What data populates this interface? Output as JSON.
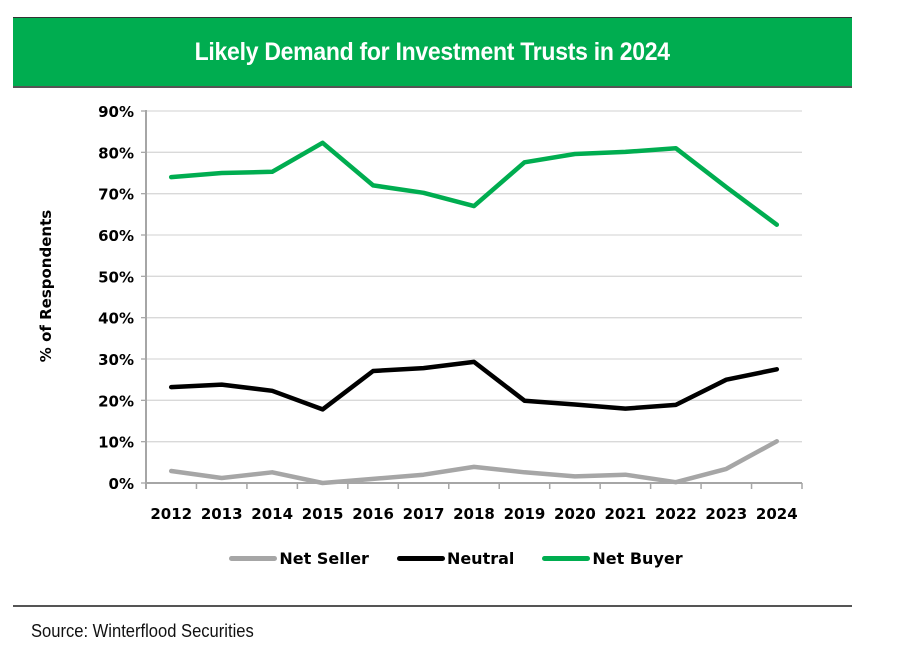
{
  "chart_data": {
    "type": "line",
    "title": "Likely Demand for Investment Trusts in 2024",
    "xlabel": "",
    "ylabel": "% of Respondents",
    "ylim": [
      0,
      90
    ],
    "yticks": [
      0,
      10,
      20,
      30,
      40,
      50,
      60,
      70,
      80,
      90
    ],
    "ytick_labels": [
      "0%",
      "10%",
      "20%",
      "30%",
      "40%",
      "50%",
      "60%",
      "70%",
      "80%",
      "90%"
    ],
    "grid": true,
    "legend_position": "bottom",
    "categories": [
      "2012",
      "2013",
      "2014",
      "2015",
      "2016",
      "2017",
      "2018",
      "2019",
      "2020",
      "2021",
      "2022",
      "2023",
      "2024"
    ],
    "series": [
      {
        "name": "Net Seller",
        "color": "#a6a6a6",
        "values": [
          2.9,
          1.2,
          2.6,
          0.0,
          1.0,
          2.0,
          3.9,
          2.6,
          1.6,
          2.0,
          0.2,
          3.4,
          10.1
        ]
      },
      {
        "name": "Neutral",
        "color": "#000000",
        "values": [
          23.2,
          23.8,
          22.3,
          17.8,
          27.1,
          27.8,
          29.3,
          19.9,
          19.0,
          18.0,
          18.9,
          25.0,
          27.5
        ]
      },
      {
        "name": "Net Buyer",
        "color": "#00ad50",
        "values": [
          74.0,
          75.0,
          75.3,
          82.3,
          72.0,
          70.2,
          67.0,
          77.6,
          79.6,
          80.1,
          81.0,
          71.6,
          62.5
        ]
      }
    ]
  },
  "header": {
    "title": "Likely Demand for Investment Trusts in 2024",
    "background": "#00ad50"
  },
  "footer": {
    "source": "Source: Winterflood Securities"
  }
}
